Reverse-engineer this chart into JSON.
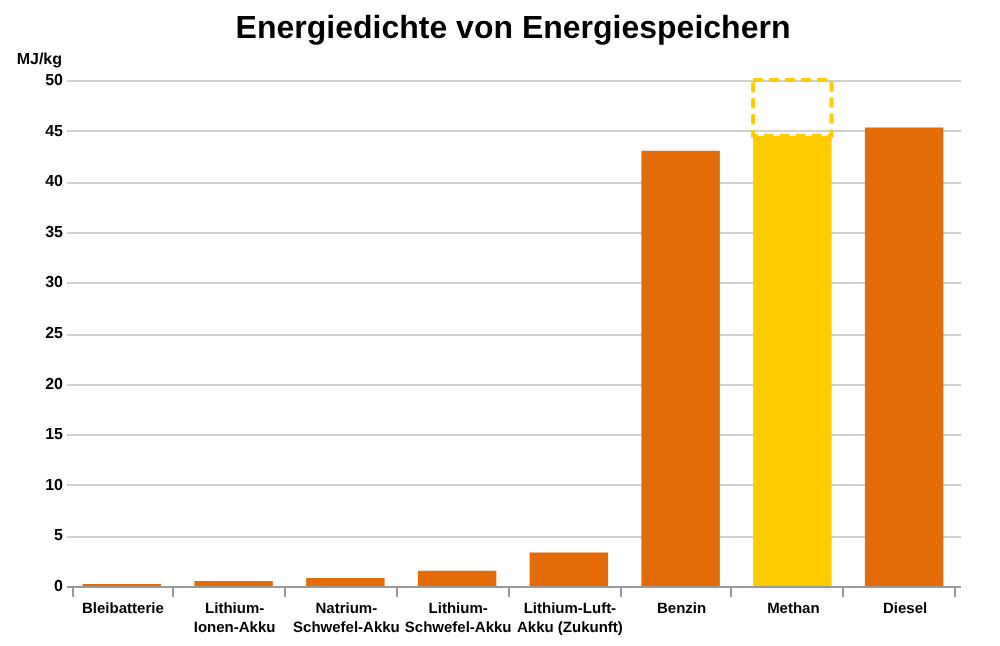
{
  "chart_data": {
    "type": "bar",
    "title": "Energiedichte von Energiespeichern",
    "ylabel": "MJ/kg",
    "categories": [
      "Bleibatterie",
      "Lithium-Ionen-Akku",
      "Natrium-Schwefel-Akku",
      "Lithium-Schwefel-Akku",
      "Lithium-Luft-Akku (Zukunft)",
      "Benzin",
      "Methan",
      "Diesel"
    ],
    "stacked": true,
    "series": [
      {
        "colors": [
          "#e36c09",
          "#e36c09",
          "#e36c09",
          "#e36c09",
          "#e36c09",
          "#e36c09",
          "#ffcc00",
          "#e36c09"
        ],
        "values": [
          0.2,
          0.5,
          0.8,
          1.5,
          3.3,
          43,
          44.5,
          45.3
        ]
      },
      {
        "color": "#ffcc00",
        "line_style": "dashed",
        "values": [
          null,
          null,
          null,
          null,
          null,
          null,
          5.5,
          null
        ]
      }
    ],
    "ylim": [
      0,
      50
    ],
    "yticks": [
      0,
      5,
      10,
      15,
      20,
      25,
      30,
      35,
      40,
      45,
      50
    ],
    "grid": "y"
  }
}
